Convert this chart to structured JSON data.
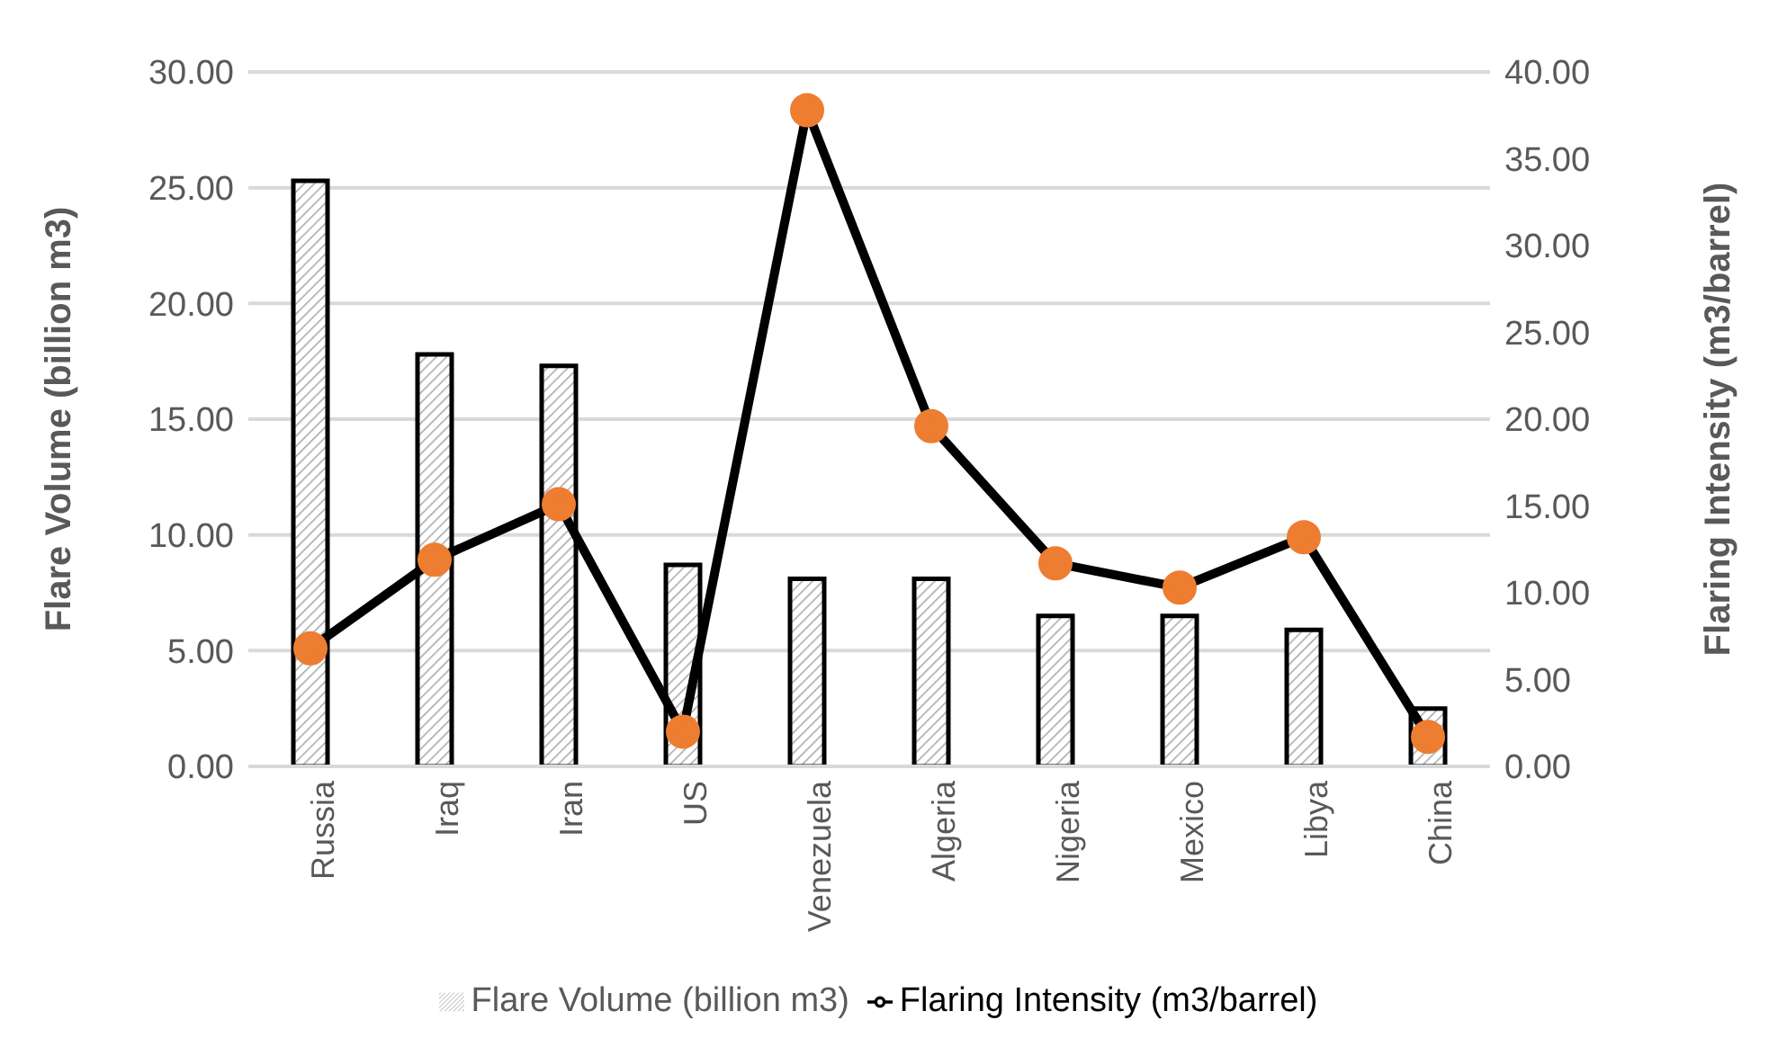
{
  "chart_data": {
    "type": "bar",
    "categories": [
      "Russia",
      "Iraq",
      "Iran",
      "US",
      "Venezuela",
      "Algeria",
      "Nigeria",
      "Mexico",
      "Libya",
      "China"
    ],
    "series": [
      {
        "name": "Flare Volume (billion m3)",
        "color": "#000000",
        "values": [
          25.3,
          17.8,
          17.3,
          8.7,
          8.1,
          8.1,
          6.5,
          6.5,
          5.9,
          2.5
        ]
      },
      {
        "name": "Flaring  Intensity (m3/barrel)",
        "type": "line",
        "axis": "y2",
        "color": "#000000",
        "marker": "circle",
        "values": [
          6.8,
          11.9,
          15.1,
          2.0,
          37.8,
          19.6,
          11.7,
          10.3,
          13.2,
          1.7
        ]
      }
    ],
    "ylabel": "Flare Volume (billion m3)",
    "y2label": "Flaring Intensity (m3/barrel)",
    "ylim": [
      0,
      30
    ],
    "yticks": [
      {
        "value": 0,
        "label": "0.00"
      },
      {
        "value": 5,
        "label": "5.00"
      },
      {
        "value": 10,
        "label": "10.00"
      },
      {
        "value": 15,
        "label": "15.00"
      },
      {
        "value": 20,
        "label": "20.00"
      },
      {
        "value": 25,
        "label": "25.00"
      },
      {
        "value": 30,
        "label": "30.00"
      }
    ],
    "y2lim": [
      0,
      40
    ],
    "y2ticks": [
      {
        "value": 0,
        "label": "0.00"
      },
      {
        "value": 5,
        "label": "5.00"
      },
      {
        "value": 10,
        "label": "10.00"
      },
      {
        "value": 15,
        "label": "15.00"
      },
      {
        "value": 20,
        "label": "20.00"
      },
      {
        "value": 25,
        "label": "25.00"
      },
      {
        "value": 30,
        "label": "30.00"
      },
      {
        "value": 35,
        "label": "35.00"
      },
      {
        "value": 40,
        "label": "40.00"
      }
    ],
    "grid": "y",
    "legend": "bottom"
  }
}
